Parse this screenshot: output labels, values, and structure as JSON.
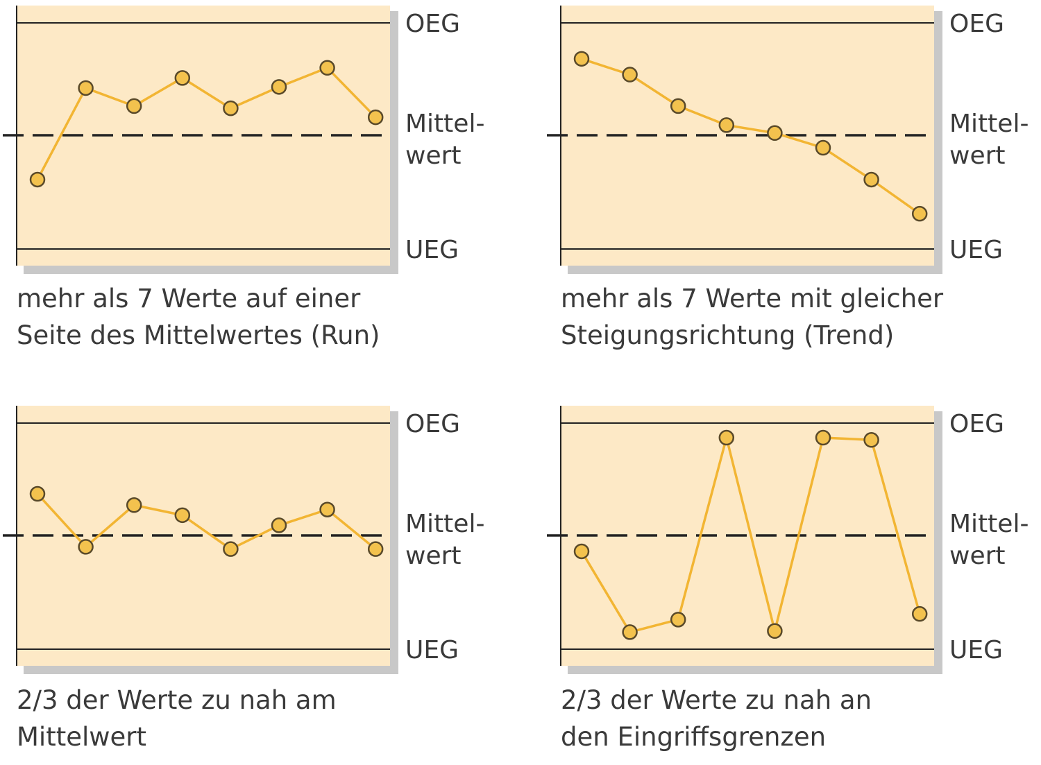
{
  "colors": {
    "panel": "#fde9c6",
    "shadow": "#c8c8c8",
    "line": "#f2b533",
    "marker_fill": "#f3c24e",
    "marker_stroke": "#5a4a2a",
    "axis": "#222222",
    "text": "#3a3a3a"
  },
  "chart_data": [
    {
      "type": "line",
      "y_labels": {
        "upper": "OEG",
        "mean": [
          "Mittel-",
          "wert"
        ],
        "lower": "UEG"
      },
      "ylim": [
        -1,
        1
      ],
      "caption": [
        "mehr als 7 Werte auf einer",
        "Seite des Mittelwertes (Run)"
      ],
      "values": [
        -0.39,
        0.42,
        0.26,
        0.51,
        0.24,
        0.43,
        0.6,
        0.16
      ]
    },
    {
      "type": "line",
      "y_labels": {
        "upper": "OEG",
        "mean": [
          "Mittel-",
          "wert"
        ],
        "lower": "UEG"
      },
      "ylim": [
        -1,
        1
      ],
      "caption": [
        "mehr als 7 Werte mit gleicher",
        "Steigungsrichtung (Trend)"
      ],
      "values": [
        0.68,
        0.54,
        0.26,
        0.09,
        0.02,
        -0.11,
        -0.39,
        -0.69
      ]
    },
    {
      "type": "line",
      "y_labels": {
        "upper": "OEG",
        "mean": [
          "Mittel-",
          "wert"
        ],
        "lower": "UEG"
      },
      "ylim": [
        -1,
        1
      ],
      "caption": [
        "2/3 der Werte zu nah am",
        "Mittelwert"
      ],
      "values": [
        0.37,
        -0.1,
        0.27,
        0.18,
        -0.12,
        0.09,
        0.23,
        -0.12
      ]
    },
    {
      "type": "line",
      "y_labels": {
        "upper": "OEG",
        "mean": [
          "Mittel-",
          "wert"
        ],
        "lower": "UEG"
      },
      "ylim": [
        -1,
        1
      ],
      "caption": [
        "2/3 der Werte zu nah an",
        "den Eingriffsgrenzen"
      ],
      "values": [
        -0.14,
        -0.85,
        -0.74,
        0.87,
        -0.84,
        0.87,
        0.85,
        -0.69
      ]
    }
  ]
}
